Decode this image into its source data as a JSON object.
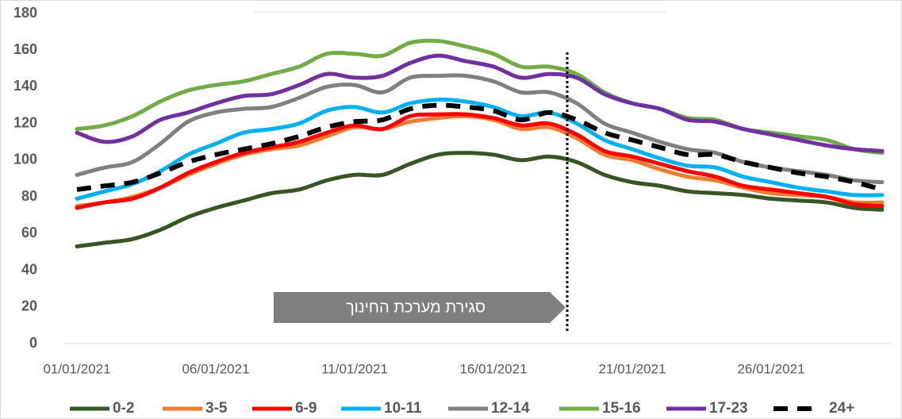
{
  "chart_data": {
    "type": "line",
    "categories": [
      "01/01/2021",
      null,
      null,
      null,
      null,
      "06/01/2021",
      null,
      null,
      null,
      null,
      "11/01/2021",
      null,
      null,
      null,
      null,
      "16/01/2021",
      null,
      null,
      null,
      null,
      "21/01/2021",
      null,
      null,
      null,
      null,
      "26/01/2021",
      null,
      null,
      null,
      null
    ],
    "series": [
      {
        "name": "0-2",
        "color": "#375623",
        "values": [
          53,
          55,
          57,
          62,
          69,
          74,
          78,
          82,
          84,
          89,
          92,
          92,
          98,
          103,
          104,
          103,
          100,
          102,
          99,
          92,
          88,
          86,
          83,
          82,
          81,
          79,
          78,
          77,
          74,
          73
        ]
      },
      {
        "name": "3-5",
        "color": "#ed7d31",
        "values": [
          75,
          77,
          80,
          85,
          92,
          98,
          103,
          106,
          108,
          113,
          118,
          117,
          121,
          123,
          124,
          122,
          117,
          118,
          112,
          103,
          100,
          95,
          91,
          89,
          85,
          82,
          81,
          80,
          77,
          77
        ]
      },
      {
        "name": "6-9",
        "color": "#ff0000",
        "values": [
          74,
          77,
          79,
          85,
          93,
          99,
          104,
          107,
          110,
          115,
          119,
          117,
          124,
          125,
          125,
          123,
          119,
          120,
          114,
          105,
          102,
          98,
          94,
          91,
          86,
          84,
          82,
          80,
          76,
          75
        ]
      },
      {
        "name": "10-11",
        "color": "#00b0f0",
        "values": [
          79,
          83,
          87,
          94,
          103,
          109,
          115,
          117,
          120,
          127,
          129,
          126,
          131,
          133,
          132,
          129,
          124,
          126,
          120,
          111,
          106,
          101,
          97,
          96,
          91,
          88,
          85,
          83,
          81,
          81
        ]
      },
      {
        "name": "12-14",
        "color": "#808080",
        "values": [
          92,
          96,
          99,
          109,
          121,
          126,
          128,
          129,
          134,
          140,
          141,
          137,
          145,
          146,
          146,
          143,
          137,
          137,
          131,
          120,
          115,
          110,
          106,
          104,
          99,
          96,
          94,
          92,
          89,
          88
        ]
      },
      {
        "name": "15-16",
        "color": "#70ad47",
        "values": [
          117,
          119,
          124,
          132,
          138,
          141,
          143,
          147,
          151,
          158,
          158,
          157,
          164,
          165,
          162,
          158,
          151,
          151,
          147,
          137,
          131,
          128,
          123,
          122,
          117,
          115,
          113,
          111,
          106,
          104
        ]
      },
      {
        "name": "17-23",
        "color": "#7030a0",
        "values": [
          115,
          110,
          113,
          122,
          126,
          131,
          135,
          136,
          141,
          147,
          145,
          146,
          153,
          157,
          154,
          151,
          145,
          147,
          145,
          136,
          131,
          128,
          122,
          121,
          117,
          114,
          111,
          108,
          106,
          105
        ]
      },
      {
        "name": "24+",
        "color": "#000000",
        "dashed": true,
        "values": [
          84,
          86,
          88,
          93,
          99,
          103,
          106,
          109,
          113,
          118,
          121,
          122,
          128,
          130,
          129,
          127,
          122,
          126,
          122,
          115,
          111,
          107,
          103,
          103,
          99,
          96,
          93,
          91,
          88,
          84
        ]
      }
    ],
    "ylim": [
      0,
      180
    ],
    "yticks": [
      0,
      20,
      40,
      60,
      80,
      100,
      120,
      140,
      160,
      180
    ],
    "annotation": "סגירת מערכת החינוך",
    "annotation_x": 17.6,
    "legend": "bottom"
  }
}
